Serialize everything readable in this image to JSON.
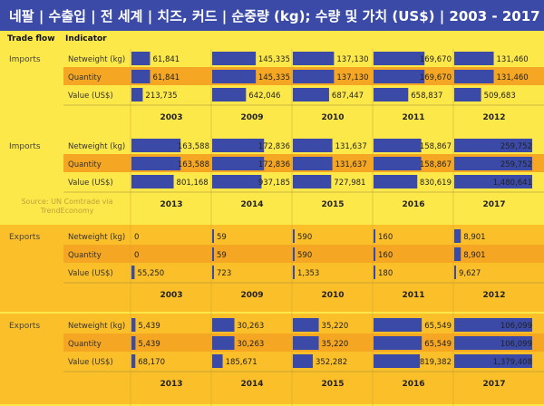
{
  "title": "네팔 | 수출입 | 전 세계 | 치즈, 커드 | 순중량 (kg); 수량 및 가치 (US$) | 2003 - 2017",
  "headers": {
    "trade_flow": "Trade flow",
    "indicator": "Indicator"
  },
  "source": "Source: UN Comtrade via TrendEconomy",
  "colors": {
    "title_bg": "#3a4aa6",
    "imports_bg": "#fde84a",
    "exports_bg": "#fbbf2a",
    "band": "#f5a623",
    "bar": "#3a4aa6"
  },
  "chart_data": {
    "type": "bar",
    "rows": [
      "Netweight (kg)",
      "Quantity",
      "Value (US$)"
    ],
    "panels": [
      {
        "flow": "Imports",
        "years": [
          "2003",
          "2009",
          "2010",
          "2011",
          "2012"
        ],
        "values": [
          [
            61841,
            145335,
            137130,
            169670,
            131460
          ],
          [
            61841,
            145335,
            137130,
            169670,
            131460
          ],
          [
            213735,
            642046,
            687447,
            658837,
            509683
          ]
        ],
        "labels": [
          [
            "61,841",
            "145,335",
            "137,130",
            "169,670",
            "131,460"
          ],
          [
            "61,841",
            "145,335",
            "137,130",
            "169,670",
            "131,460"
          ],
          [
            "213,735",
            "642,046",
            "687,447",
            "658,837",
            "509,683"
          ]
        ]
      },
      {
        "flow": "Imports",
        "years": [
          "2013",
          "2014",
          "2015",
          "2016",
          "2017"
        ],
        "values": [
          [
            163588,
            172836,
            131637,
            158867,
            259752
          ],
          [
            163588,
            172836,
            131637,
            158867,
            259752
          ],
          [
            801168,
            937185,
            727981,
            830619,
            1480641
          ]
        ],
        "labels": [
          [
            "163,588",
            "172,836",
            "131,637",
            "158,867",
            "259,752"
          ],
          [
            "163,588",
            "172,836",
            "131,637",
            "158,867",
            "259,752"
          ],
          [
            "801,168",
            "937,185",
            "727,981",
            "830,619",
            "1,480,641"
          ]
        ]
      },
      {
        "flow": "Exports",
        "years": [
          "2003",
          "2009",
          "2010",
          "2011",
          "2012"
        ],
        "values": [
          [
            0,
            59,
            590,
            160,
            8901
          ],
          [
            0,
            59,
            590,
            160,
            8901
          ],
          [
            55250,
            723,
            1353,
            180,
            9627
          ]
        ],
        "labels": [
          [
            "0",
            "59",
            "590",
            "160",
            "8,901"
          ],
          [
            "0",
            "59",
            "590",
            "160",
            "8,901"
          ],
          [
            "55,250",
            "723",
            "1,353",
            "180",
            "9,627"
          ]
        ]
      },
      {
        "flow": "Exports",
        "years": [
          "2013",
          "2014",
          "2015",
          "2016",
          "2017"
        ],
        "values": [
          [
            5439,
            30263,
            35220,
            65549,
            106099
          ],
          [
            5439,
            30263,
            35220,
            65549,
            106099
          ],
          [
            68170,
            185671,
            352282,
            819382,
            1379408
          ]
        ],
        "labels": [
          [
            "5,439",
            "30,263",
            "35,220",
            "65,549",
            "106,099"
          ],
          [
            "5,439",
            "30,263",
            "35,220",
            "65,549",
            "106,099"
          ],
          [
            "68,170",
            "185,671",
            "352,282",
            "819,382",
            "1,379,408"
          ]
        ]
      }
    ]
  }
}
